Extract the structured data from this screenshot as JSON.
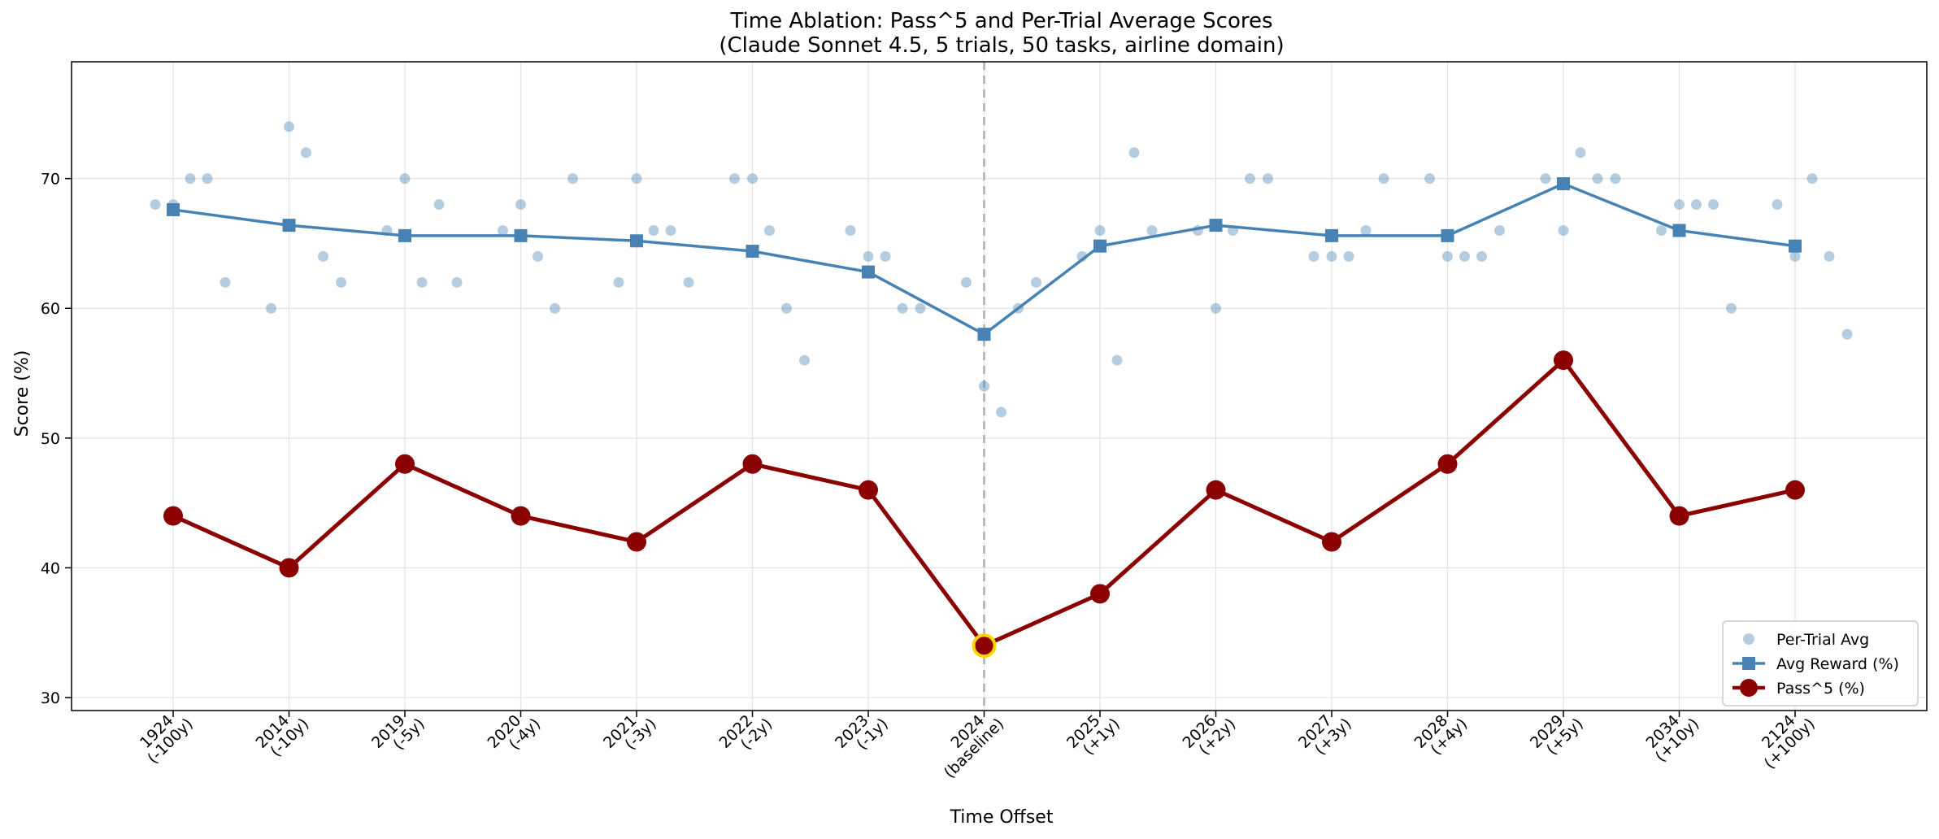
{
  "chart_data": {
    "type": "line",
    "title": "Time Ablation: Pass^5 and Per-Trial Average Scores",
    "subtitle": "(Claude Sonnet 4.5, 5 trials, 50 tasks, airline domain)",
    "xlabel": "Time Offset",
    "ylabel": "Score (%)",
    "ylim": [
      29,
      79
    ],
    "yticks": [
      30,
      40,
      50,
      60,
      70
    ],
    "grid": true,
    "legend_position": "bottom-right",
    "baseline_category": "2024 (baseline)",
    "categories": [
      {
        "year": "1924",
        "offset": "(-100y)"
      },
      {
        "year": "2014",
        "offset": "(-10y)"
      },
      {
        "year": "2019",
        "offset": "(-5y)"
      },
      {
        "year": "2020",
        "offset": "(-4y)"
      },
      {
        "year": "2021",
        "offset": "(-3y)"
      },
      {
        "year": "2022",
        "offset": "(-2y)"
      },
      {
        "year": "2023",
        "offset": "(-1y)"
      },
      {
        "year": "2024",
        "offset": "(baseline)"
      },
      {
        "year": "2025",
        "offset": "(+1y)"
      },
      {
        "year": "2026",
        "offset": "(+2y)"
      },
      {
        "year": "2027",
        "offset": "(+3y)"
      },
      {
        "year": "2028",
        "offset": "(+4y)"
      },
      {
        "year": "2029",
        "offset": "(+5y)"
      },
      {
        "year": "2034",
        "offset": "(+10y)"
      },
      {
        "year": "2124",
        "offset": "(+100y)"
      }
    ],
    "series": [
      {
        "name": "Per-Trial Avg",
        "type": "scatter",
        "color": "#4682b4",
        "trials": [
          [
            68,
            68,
            70,
            70,
            62
          ],
          [
            60,
            74,
            72,
            64,
            62
          ],
          [
            66,
            70,
            62,
            68,
            62
          ],
          [
            66,
            68,
            64,
            60,
            70
          ],
          [
            62,
            70,
            66,
            66,
            62
          ],
          [
            70,
            70,
            66,
            60,
            56
          ],
          [
            66,
            64,
            64,
            60,
            60
          ],
          [
            62,
            54,
            52,
            60,
            62
          ],
          [
            64,
            66,
            56,
            72,
            66
          ],
          [
            66,
            60,
            66,
            70,
            70
          ],
          [
            64,
            64,
            64,
            66,
            70
          ],
          [
            70,
            64,
            64,
            64,
            66
          ],
          [
            70,
            66,
            72,
            70,
            70
          ],
          [
            66,
            68,
            68,
            68,
            60
          ],
          [
            68,
            64,
            70,
            64,
            58
          ]
        ]
      },
      {
        "name": "Avg Reward (%)",
        "type": "line",
        "color": "#4682b4",
        "values": [
          67.6,
          66.4,
          65.6,
          65.6,
          65.2,
          64.4,
          62.8,
          58.0,
          64.8,
          66.4,
          65.6,
          65.6,
          69.6,
          66.0,
          64.8
        ]
      },
      {
        "name": "Pass^5 (%)",
        "type": "line",
        "color": "#8b0000",
        "values": [
          44,
          40,
          48,
          44,
          42,
          48,
          46,
          34,
          38,
          46,
          42,
          48,
          56,
          44,
          46
        ]
      }
    ]
  }
}
